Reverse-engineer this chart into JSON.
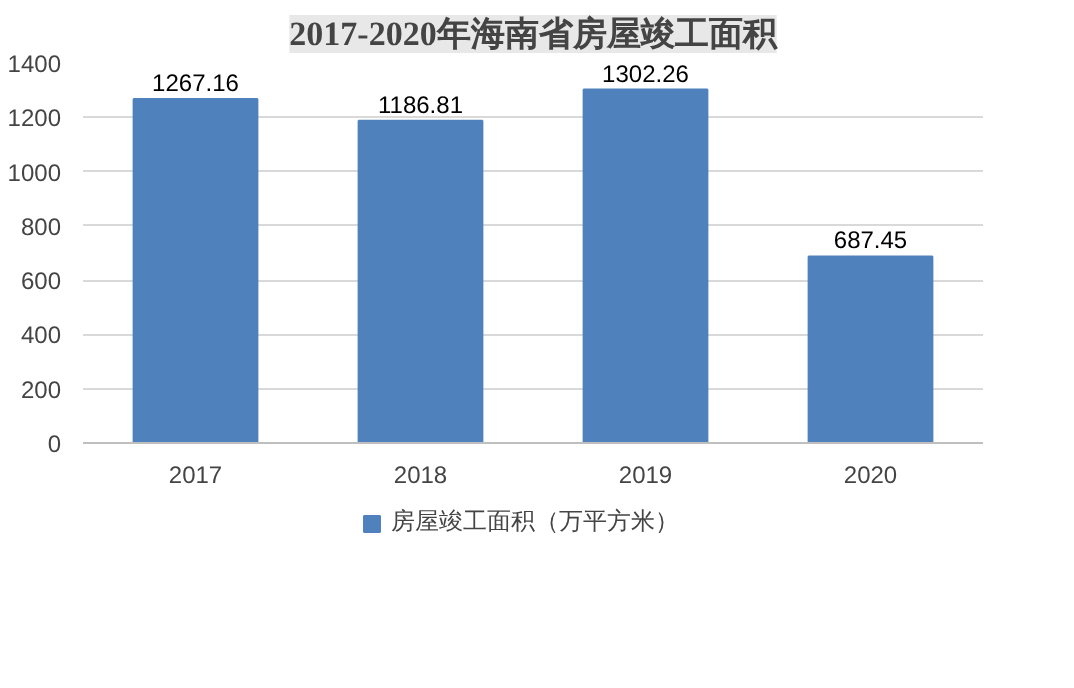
{
  "chart_data": {
    "type": "bar",
    "title": "2017-2020年海南省房屋竣工面积",
    "categories": [
      "2017",
      "2018",
      "2019",
      "2020"
    ],
    "series": [
      {
        "name": "房屋竣工面积（万平方米）",
        "color": "#4f81bd",
        "values": [
          1267.16,
          1186.81,
          1302.26,
          687.45
        ]
      }
    ],
    "ylim": [
      0,
      1400
    ],
    "yticks": [
      0,
      200,
      400,
      600,
      800,
      1000,
      1200,
      1400
    ],
    "grid": "y",
    "legend": "bottom",
    "data_labels": true
  }
}
